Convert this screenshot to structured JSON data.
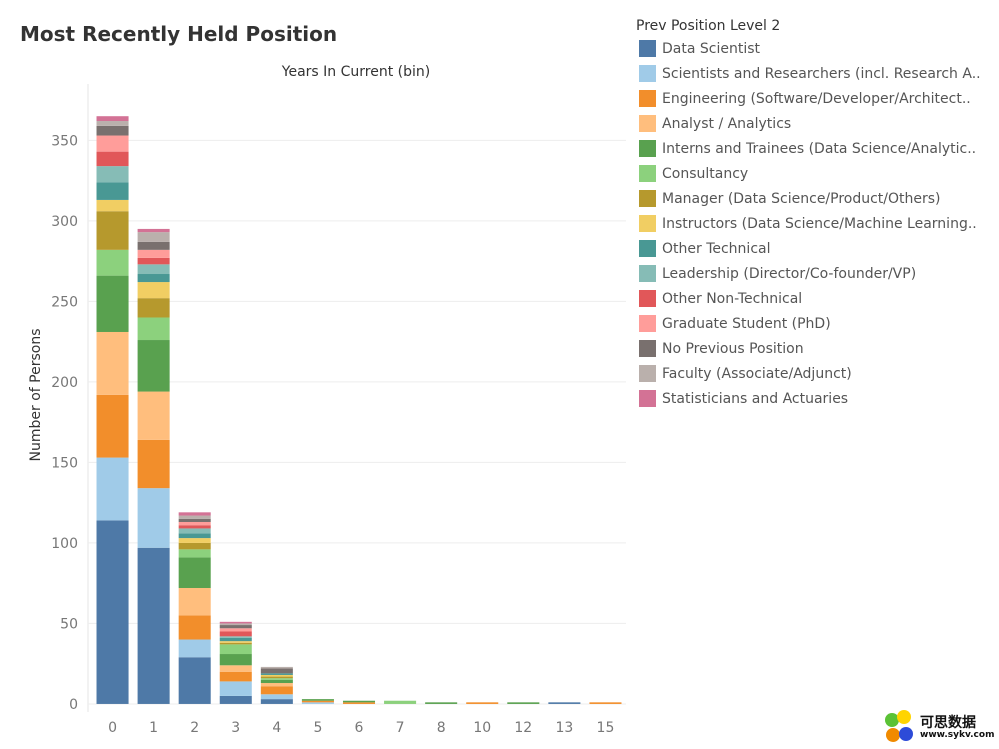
{
  "chart_data": {
    "type": "bar",
    "stacked": true,
    "title": "Most Recently Held Position",
    "column_header": "Years In Current (bin)",
    "ylabel": "Number of Persons",
    "ylim": [
      -5,
      385
    ],
    "yticks": [
      0,
      50,
      100,
      150,
      200,
      250,
      300,
      350
    ],
    "grid": true,
    "legend_position": "right",
    "legend_title": "Prev Position Level 2",
    "categories": [
      "0",
      "1",
      "2",
      "3",
      "4",
      "5",
      "6",
      "7",
      "8",
      "10",
      "12",
      "13",
      "15"
    ],
    "series": [
      {
        "name": "Data Scientist",
        "color": "#4E79A7",
        "values": [
          114,
          97,
          29,
          5,
          3,
          0,
          0,
          0,
          0,
          0,
          0,
          1,
          0
        ]
      },
      {
        "name": "Scientists and Researchers (incl. Research A..",
        "color": "#A0CBE8",
        "values": [
          39,
          37,
          11,
          9,
          3,
          1,
          0,
          0,
          0,
          0,
          0,
          0,
          0
        ]
      },
      {
        "name": "Engineering (Software/Developer/Architect..",
        "color": "#F28E2B",
        "values": [
          39,
          30,
          15,
          6,
          5,
          1,
          1,
          0,
          0,
          1,
          0,
          0,
          1
        ]
      },
      {
        "name": "Analyst / Analytics",
        "color": "#FFBE7D",
        "values": [
          39,
          30,
          17,
          4,
          2,
          0,
          0,
          0,
          0,
          0,
          0,
          0,
          0
        ]
      },
      {
        "name": "Interns and Trainees (Data Science/Analytic..",
        "color": "#59A14F",
        "values": [
          35,
          32,
          19,
          7,
          2,
          1,
          1,
          0,
          1,
          0,
          1,
          0,
          0
        ]
      },
      {
        "name": "Consultancy",
        "color": "#8CD17D",
        "values": [
          16,
          14,
          5,
          6,
          1,
          0,
          0,
          2,
          0,
          0,
          0,
          0,
          0
        ]
      },
      {
        "name": "Manager (Data Science/Product/Others)",
        "color": "#B6992D",
        "values": [
          24,
          12,
          4,
          1,
          1,
          0,
          0,
          0,
          0,
          0,
          0,
          0,
          0
        ]
      },
      {
        "name": "Instructors (Data Science/Machine Learning..",
        "color": "#F1CE63",
        "values": [
          7,
          10,
          3,
          1,
          1,
          0,
          0,
          0,
          0,
          0,
          0,
          0,
          0
        ]
      },
      {
        "name": "Other Technical",
        "color": "#499894",
        "values": [
          11,
          5,
          3,
          2,
          1,
          0,
          0,
          0,
          0,
          0,
          0,
          0,
          0
        ]
      },
      {
        "name": "Leadership (Director/Co-founder/VP)",
        "color": "#86BCB6",
        "values": [
          10,
          6,
          3,
          1,
          0,
          0,
          0,
          0,
          0,
          0,
          0,
          0,
          0
        ]
      },
      {
        "name": "Other Non-Technical",
        "color": "#E15759",
        "values": [
          9,
          4,
          2,
          3,
          0,
          0,
          0,
          0,
          0,
          0,
          0,
          0,
          0
        ]
      },
      {
        "name": "Graduate Student (PhD)",
        "color": "#FF9D9A",
        "values": [
          10,
          5,
          2,
          2,
          0,
          0,
          0,
          0,
          0,
          0,
          0,
          0,
          0
        ]
      },
      {
        "name": "No Previous Position",
        "color": "#79706E",
        "values": [
          6,
          5,
          2,
          2,
          3,
          0,
          0,
          0,
          0,
          0,
          0,
          0,
          0
        ]
      },
      {
        "name": "Faculty (Associate/Adjunct)",
        "color": "#BAB0AC",
        "values": [
          3,
          6,
          2,
          1,
          1,
          0,
          0,
          0,
          0,
          0,
          0,
          0,
          0
        ]
      },
      {
        "name": "Statisticians and Actuaries",
        "color": "#D37295",
        "values": [
          3,
          2,
          2,
          1,
          0,
          0,
          0,
          0,
          0,
          0,
          0,
          0,
          0
        ]
      }
    ]
  },
  "watermark": {
    "text": "可思数据",
    "url": "www.sykv.com"
  }
}
